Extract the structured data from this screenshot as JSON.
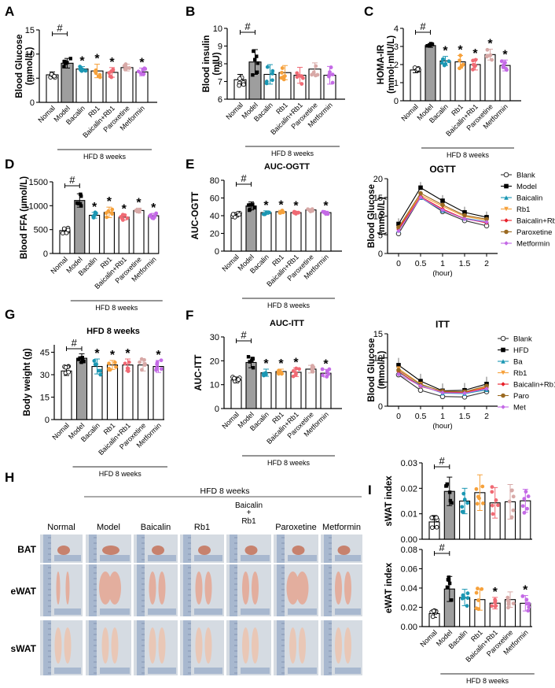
{
  "colors": {
    "Normal": "#ffffff",
    "Model": "#9e9e9e",
    "Baicalin": "#1b97b3",
    "Rb1": "#f6a13b",
    "Baicalin+Rb1": "#f06a74",
    "Paroxetine": "#d8a9a7",
    "Metformin": "#c46ae6",
    "ParoxetineLine": "#9b6a22",
    "ITTParo": "#9b7a3a"
  },
  "shared": {
    "groups": [
      "Nomal",
      "Model",
      "Bacalin",
      "Rb1",
      "Baicalin+Rb1",
      "Paroxetine",
      "Metformin"
    ],
    "hfd_label": "HFD 8 weeks",
    "hash": "#",
    "star": "*"
  },
  "chart_data": [
    {
      "id": "A",
      "type": "bar",
      "panel_label": "A",
      "title": "",
      "ylabel": "Blood Glucose\n(mmol/L)",
      "ylim": [
        0,
        15
      ],
      "yticks": [
        0,
        5,
        10,
        15
      ],
      "categories": [
        "Nomal",
        "Model",
        "Bacalin",
        "Rb1",
        "Baicalin+Rb1",
        "Paroxetine",
        "Metformin"
      ],
      "values": [
        5.7,
        8.1,
        6.9,
        6.5,
        6.2,
        7.2,
        6.3
      ],
      "errors": [
        0.6,
        1.0,
        0.5,
        1.4,
        1.0,
        0.7,
        0.8
      ],
      "significance": [
        "",
        "#",
        "*",
        "*",
        "*",
        "",
        "*"
      ],
      "xgroup_label": "HFD 8 weeks"
    },
    {
      "id": "B",
      "type": "bar",
      "panel_label": "B",
      "title": "",
      "ylabel": "Blood insulin\n(mIU)",
      "ylim": [
        6,
        10
      ],
      "yticks": [
        6,
        7,
        8,
        9,
        10
      ],
      "categories": [
        "Nomal",
        "Model",
        "Bacalin",
        "Rb1",
        "Baicalin+Rb1",
        "Paroxetine",
        "Metformin"
      ],
      "values": [
        7.1,
        8.1,
        7.4,
        7.5,
        7.35,
        7.7,
        7.35
      ],
      "errors": [
        0.3,
        0.7,
        0.55,
        0.4,
        0.45,
        0.35,
        0.5
      ],
      "significance": [
        "",
        "#",
        "",
        "",
        "",
        "",
        ""
      ],
      "xgroup_label": "HFD 8 weeks"
    },
    {
      "id": "C",
      "type": "bar",
      "panel_label": "C",
      "title": "",
      "ylabel": "HOMA-IR\n(mmol·mIU/L)",
      "ylim": [
        0,
        4
      ],
      "yticks": [
        0,
        1,
        2,
        3,
        4
      ],
      "categories": [
        "Nomal",
        "Model",
        "Bacalin",
        "Rb1",
        "Baicalin+Rb1",
        "Paroxetine",
        "Metformin"
      ],
      "values": [
        1.7,
        3.05,
        2.2,
        2.15,
        2.0,
        2.55,
        1.95
      ],
      "errors": [
        0.15,
        0.1,
        0.25,
        0.35,
        0.3,
        0.3,
        0.3
      ],
      "significance": [
        "",
        "#",
        "*",
        "*",
        "*",
        "*",
        "*"
      ],
      "xgroup_label": "HFD 8 weeks"
    },
    {
      "id": "D",
      "type": "bar",
      "panel_label": "D",
      "title": "",
      "ylabel": "Blood FFA (µmol/L)",
      "ylim": [
        0,
        1500
      ],
      "yticks": [
        0,
        500,
        1000,
        1500
      ],
      "categories": [
        "Nomal",
        "Model",
        "Bacalin",
        "Rb1",
        "Baicalin+Rb1",
        "Paroxetine",
        "Metformin"
      ],
      "values": [
        480,
        1110,
        800,
        860,
        760,
        900,
        790
      ],
      "errors": [
        60,
        140,
        60,
        110,
        60,
        50,
        50
      ],
      "significance": [
        "",
        "#",
        "*",
        "*",
        "*",
        "*",
        "*"
      ],
      "xgroup_label": "HFD 8 weeks"
    },
    {
      "id": "E",
      "type": "bar",
      "panel_label": "E",
      "title": "AUC-OGTT",
      "ylabel": "AUC-OGTT",
      "ylim": [
        0,
        80
      ],
      "yticks": [
        0,
        20,
        40,
        60,
        80
      ],
      "categories": [
        "Nomal",
        "Model",
        "Bacalin",
        "Rb1",
        "Baicalin+Rb1",
        "Paroxetine",
        "Metformin"
      ],
      "values": [
        41,
        51,
        43.5,
        44.5,
        43.5,
        46.5,
        43.5
      ],
      "errors": [
        2.5,
        4.5,
        2,
        1.5,
        1.5,
        1.5,
        1.5
      ],
      "significance": [
        "",
        "#",
        "*",
        "*",
        "*",
        "",
        "*"
      ],
      "xgroup_label": "HFD 8 weeks"
    },
    {
      "id": "OGTT",
      "type": "line",
      "panel_label": "",
      "title": "OGTT",
      "ylabel": "Blood Glucose\n(mmol/L)",
      "xlabel": "(hour)",
      "x": [
        0,
        0.5,
        1,
        1.5,
        2
      ],
      "ylim": [
        0,
        20
      ],
      "yticks": [
        0,
        5,
        10,
        15,
        20
      ],
      "xlim": [
        -0.25,
        2.25
      ],
      "legend_position": "right",
      "series": [
        {
          "name": "Blank",
          "values": [
            5.3,
            15.0,
            11.2,
            8.8,
            7.4
          ],
          "marker": "circle-open",
          "color": "#333333"
        },
        {
          "name": "Model",
          "values": [
            7.9,
            17.6,
            14.1,
            11.0,
            9.7
          ],
          "marker": "square",
          "color": "#000000"
        },
        {
          "name": "Baicalin",
          "values": [
            6.2,
            14.9,
            11.5,
            9.4,
            8.5
          ],
          "marker": "triangle-up",
          "color": "#1b97b3"
        },
        {
          "name": "Rb1",
          "values": [
            6.8,
            15.6,
            12.6,
            9.9,
            8.9
          ],
          "marker": "triangle-down",
          "color": "#f6a13b"
        },
        {
          "name": "Baicalin+Rb1",
          "values": [
            6.5,
            15.2,
            11.9,
            9.3,
            8.2
          ],
          "marker": "diamond",
          "color": "#e8202a"
        },
        {
          "name": "Paroxetine",
          "values": [
            7.0,
            16.1,
            13.0,
            10.2,
            9.2
          ],
          "marker": "circle",
          "color": "#9b6a22"
        },
        {
          "name": "Metformin",
          "values": [
            6.0,
            15.0,
            11.6,
            9.2,
            8.4
          ],
          "marker": "diamond",
          "color": "#c46ae6"
        }
      ]
    },
    {
      "id": "G",
      "type": "bar",
      "panel_label": "G",
      "title": "HFD 8 weeks",
      "ylabel": "Body weight (g)",
      "ylim": [
        0,
        50
      ],
      "yticks": [
        0,
        15,
        30,
        45
      ],
      "categories": [
        "Nomal",
        "Model",
        "Bacalin",
        "Rb1",
        "Baicalin+Rb1",
        "Paroxetine",
        "Metformin"
      ],
      "values": [
        32.5,
        41,
        35.5,
        36.5,
        36.5,
        36.5,
        35.5
      ],
      "errors": [
        3,
        3,
        5,
        3,
        4,
        4,
        4
      ],
      "significance": [
        "",
        "#",
        "*",
        "*",
        "*",
        "",
        "*"
      ],
      "xgroup_label": "HFD 8 weeks"
    },
    {
      "id": "F",
      "type": "bar",
      "panel_label": "F",
      "title": "AUC-ITT",
      "ylabel": "AUC-ITT",
      "ylim": [
        0,
        30
      ],
      "yticks": [
        0,
        10,
        20,
        30
      ],
      "categories": [
        "Nomal",
        "Model",
        "Bacalin",
        "Rb1",
        "Baicalin+Rb1",
        "Paroxetine",
        "Metformin"
      ],
      "values": [
        12,
        19.3,
        15,
        15.5,
        15.2,
        16.5,
        14.8
      ],
      "errors": [
        1.2,
        2.2,
        1.5,
        1.0,
        1.8,
        1.6,
        1.6
      ],
      "significance": [
        "",
        "#",
        "*",
        "*",
        "*",
        "",
        "*"
      ],
      "xgroup_label": "HFD 8 weeks"
    },
    {
      "id": "ITT",
      "type": "line",
      "panel_label": "",
      "title": "ITT",
      "ylabel": "Blood Glucose\n(mmol/L)",
      "xlabel": "(hour)",
      "x": [
        0,
        0.5,
        1,
        1.5,
        2
      ],
      "ylim": [
        0,
        15
      ],
      "yticks": [
        0,
        5,
        10,
        15
      ],
      "xlim": [
        -0.25,
        2.25
      ],
      "legend_position": "right",
      "series": [
        {
          "name": "Blank",
          "values": [
            6.5,
            3.3,
            2.0,
            1.9,
            3.0
          ],
          "marker": "circle-open",
          "color": "#333333"
        },
        {
          "name": "HFD",
          "values": [
            8.5,
            5.2,
            3.2,
            3.3,
            4.6
          ],
          "marker": "square",
          "color": "#000000"
        },
        {
          "name": "Ba",
          "values": [
            7.0,
            4.3,
            2.7,
            2.6,
            3.4
          ],
          "marker": "triangle-up",
          "color": "#1b97b3"
        },
        {
          "name": "Rb1",
          "values": [
            7.8,
            4.6,
            3.0,
            2.9,
            4.0
          ],
          "marker": "triangle-down",
          "color": "#f6a13b"
        },
        {
          "name": "Baicalin+Rb1",
          "values": [
            7.2,
            4.1,
            2.9,
            2.8,
            3.8
          ],
          "marker": "diamond",
          "color": "#e8202a"
        },
        {
          "name": "Paro",
          "values": [
            7.5,
            4.5,
            3.1,
            3.0,
            4.2
          ],
          "marker": "circle",
          "color": "#9b6a22"
        },
        {
          "name": "Met",
          "values": [
            6.6,
            4.2,
            2.8,
            2.7,
            3.6
          ],
          "marker": "diamond",
          "color": "#c46ae6"
        }
      ]
    },
    {
      "id": "I1",
      "type": "bar",
      "panel_label": "I",
      "title": "",
      "ylabel": "sWAT index",
      "ylim": [
        0,
        0.03
      ],
      "yticks": [
        0,
        0.01,
        0.02,
        0.03
      ],
      "ytick_labels": [
        "0.00",
        "0.01",
        "0.02",
        "0.03"
      ],
      "categories": [
        "Nomal",
        "Model",
        "Bacalin",
        "Rb1",
        "Baicalin+Rb1",
        "Paroxetine",
        "Metformin"
      ],
      "values": [
        0.0068,
        0.0188,
        0.015,
        0.0183,
        0.0143,
        0.0147,
        0.0151
      ],
      "errors": [
        0.0025,
        0.0056,
        0.005,
        0.007,
        0.006,
        0.0068,
        0.0045
      ],
      "significance": [
        "",
        "#",
        "",
        "",
        "",
        "",
        ""
      ],
      "show_xticks": false
    },
    {
      "id": "I2",
      "type": "bar",
      "panel_label": "",
      "title": "",
      "ylabel": "eWAT index",
      "ylim": [
        0,
        0.08
      ],
      "yticks": [
        0,
        0.02,
        0.04,
        0.06,
        0.08
      ],
      "ytick_labels": [
        "0.00",
        "0.02",
        "0.04",
        "0.06",
        "0.08"
      ],
      "categories": [
        "Nomal",
        "Model",
        "Bacalin",
        "Rb1",
        "Baicalin+Rb1",
        "Paroxetine",
        "Metformin"
      ],
      "values": [
        0.0135,
        0.039,
        0.0302,
        0.028,
        0.0243,
        0.028,
        0.0242
      ],
      "errors": [
        0.004,
        0.013,
        0.0085,
        0.011,
        0.006,
        0.008,
        0.008
      ],
      "significance": [
        "",
        "#",
        "",
        "",
        "*",
        "",
        "*"
      ],
      "xgroup_label": "HFD 8 weeks"
    }
  ],
  "photo_panel": {
    "panel_label": "H",
    "hfd_label": "HFD 8 weeks",
    "columns": [
      "Normal",
      "Model",
      "Baicalin",
      "Rb1",
      "Baicalin\n+\nRb1",
      "Paroxetine",
      "Metformin"
    ],
    "rows": [
      "BAT",
      "eWAT",
      "sWAT"
    ]
  }
}
